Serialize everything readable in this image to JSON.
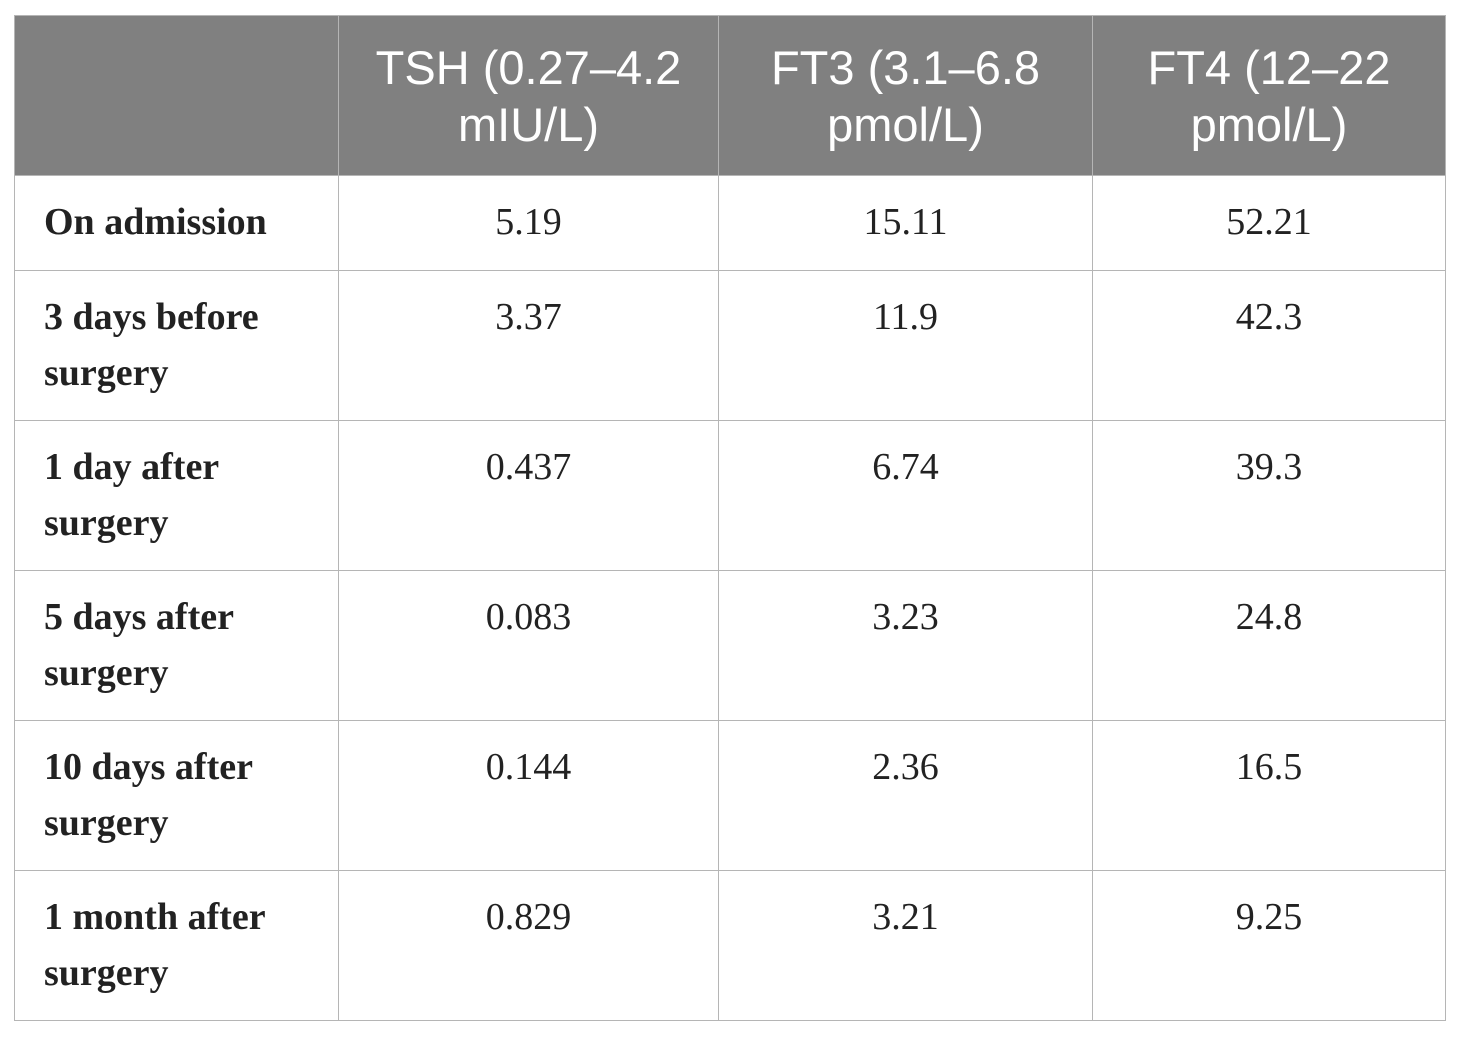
{
  "table": {
    "headers": [
      "",
      "TSH (0.27–4.2 mIU/L)",
      "FT3 (3.1–6.8 pmol/L)",
      "FT4 (12–22 pmol/L)"
    ],
    "rows": [
      {
        "label": "On admission",
        "tsh": "5.19",
        "ft3": "15.11",
        "ft4": "52.21"
      },
      {
        "label": "3 days before surgery",
        "tsh": "3.37",
        "ft3": "11.9",
        "ft4": "42.3"
      },
      {
        "label": "1 day after surgery",
        "tsh": "0.437",
        "ft3": "6.74",
        "ft4": "39.3"
      },
      {
        "label": "5 days after surgery",
        "tsh": "0.083",
        "ft3": "3.23",
        "ft4": "24.8"
      },
      {
        "label": "10 days after surgery",
        "tsh": "0.144",
        "ft3": "2.36",
        "ft4": "16.5"
      },
      {
        "label": "1 month after surgery",
        "tsh": "0.829",
        "ft3": "3.21",
        "ft4": "9.25"
      }
    ]
  },
  "colors": {
    "header_bg": "#808080",
    "header_text": "#ffffff",
    "border": "#b5b5b5"
  }
}
